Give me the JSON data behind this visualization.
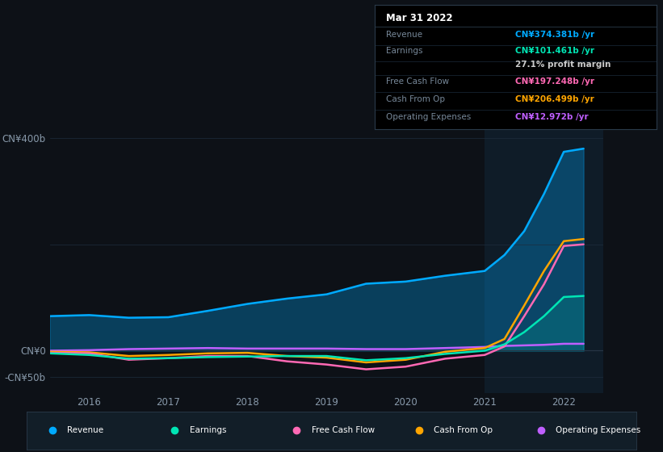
{
  "background_color": "#0d1117",
  "chart_bg": "#0d1117",
  "info_box": {
    "title": "Mar 31 2022",
    "rows": [
      {
        "label": "Revenue",
        "value": "CN¥374.381b /yr",
        "color": "#00aaff"
      },
      {
        "label": "Earnings",
        "value": "CN¥101.461b /yr",
        "color": "#00e5b4"
      },
      {
        "label": "",
        "value": "27.1% profit margin",
        "color": "#cccccc"
      },
      {
        "label": "Free Cash Flow",
        "value": "CN¥197.248b /yr",
        "color": "#ff69b4"
      },
      {
        "label": "Cash From Op",
        "value": "CN¥206.499b /yr",
        "color": "#ffa500"
      },
      {
        "label": "Operating Expenses",
        "value": "CN¥12.972b /yr",
        "color": "#bf5fff"
      }
    ]
  },
  "ylim": [
    -80,
    430
  ],
  "xlim": [
    2015.5,
    2022.5
  ],
  "xticks": [
    2016,
    2017,
    2018,
    2019,
    2020,
    2021,
    2022
  ],
  "series": {
    "Revenue": {
      "color": "#00aaff",
      "x": [
        2015.5,
        2016.0,
        2016.5,
        2017.0,
        2017.5,
        2018.0,
        2018.5,
        2019.0,
        2019.5,
        2020.0,
        2020.5,
        2021.0,
        2021.25,
        2021.5,
        2021.75,
        2022.0,
        2022.25
      ],
      "y": [
        65,
        67,
        62,
        63,
        75,
        88,
        98,
        106,
        126,
        130,
        141,
        150,
        180,
        225,
        295,
        374,
        380
      ]
    },
    "Earnings": {
      "color": "#00e5b4",
      "x": [
        2015.5,
        2016.0,
        2016.5,
        2017.0,
        2017.5,
        2018.0,
        2018.5,
        2019.0,
        2019.5,
        2020.0,
        2020.5,
        2021.0,
        2021.25,
        2021.5,
        2021.75,
        2022.0,
        2022.25
      ],
      "y": [
        -5,
        -8,
        -15,
        -14,
        -12,
        -11,
        -10,
        -10,
        -18,
        -14,
        -6,
        0,
        12,
        35,
        65,
        101,
        103
      ]
    },
    "Free Cash Flow": {
      "color": "#ff69b4",
      "x": [
        2015.5,
        2016.0,
        2016.5,
        2017.0,
        2017.5,
        2018.0,
        2018.5,
        2019.0,
        2019.5,
        2020.0,
        2020.5,
        2021.0,
        2021.25,
        2021.5,
        2021.75,
        2022.0,
        2022.25
      ],
      "y": [
        -4,
        -5,
        -17,
        -14,
        -10,
        -10,
        -20,
        -26,
        -35,
        -30,
        -15,
        -8,
        8,
        65,
        125,
        197,
        200
      ]
    },
    "Cash From Op": {
      "color": "#ffa500",
      "x": [
        2015.5,
        2016.0,
        2016.5,
        2017.0,
        2017.5,
        2018.0,
        2018.5,
        2019.0,
        2019.5,
        2020.0,
        2020.5,
        2021.0,
        2021.25,
        2021.5,
        2021.75,
        2022.0,
        2022.25
      ],
      "y": [
        -2,
        -3,
        -10,
        -8,
        -5,
        -4,
        -10,
        -13,
        -22,
        -17,
        -2,
        5,
        22,
        85,
        150,
        206,
        210
      ]
    },
    "Operating Expenses": {
      "color": "#bf5fff",
      "x": [
        2015.5,
        2016.0,
        2016.5,
        2017.0,
        2017.5,
        2018.0,
        2018.5,
        2019.0,
        2019.5,
        2020.0,
        2020.5,
        2021.0,
        2021.25,
        2021.5,
        2021.75,
        2022.0,
        2022.25
      ],
      "y": [
        0,
        1,
        3,
        4,
        5,
        4,
        4,
        4,
        3,
        3,
        5,
        7,
        9,
        10,
        11,
        13,
        13
      ]
    }
  },
  "legend": [
    {
      "label": "Revenue",
      "color": "#00aaff"
    },
    {
      "label": "Earnings",
      "color": "#00e5b4"
    },
    {
      "label": "Free Cash Flow",
      "color": "#ff69b4"
    },
    {
      "label": "Cash From Op",
      "color": "#ffa500"
    },
    {
      "label": "Operating Expenses",
      "color": "#bf5fff"
    }
  ],
  "shaded_region_x": 2021.0,
  "grid_color": "#1e2d3d",
  "text_color": "#8899aa",
  "zero_line_color": "#3a4a5a"
}
